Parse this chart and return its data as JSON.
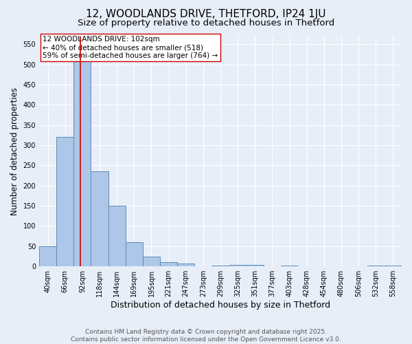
{
  "title": "12, WOODLANDS DRIVE, THETFORD, IP24 1JU",
  "subtitle": "Size of property relative to detached houses in Thetford",
  "xlabel": "Distribution of detached houses by size in Thetford",
  "ylabel": "Number of detached properties",
  "categories": [
    "40sqm",
    "66sqm",
    "92sqm",
    "118sqm",
    "144sqm",
    "169sqm",
    "195sqm",
    "221sqm",
    "247sqm",
    "273sqm",
    "299sqm",
    "325sqm",
    "351sqm",
    "377sqm",
    "403sqm",
    "428sqm",
    "454sqm",
    "480sqm",
    "506sqm",
    "532sqm",
    "558sqm"
  ],
  "values": [
    50,
    320,
    510,
    235,
    150,
    60,
    25,
    10,
    8,
    0,
    2,
    4,
    4,
    0,
    2,
    0,
    0,
    0,
    0,
    2,
    2
  ],
  "bar_color": "#aec6e8",
  "bar_edge_color": "#5b8db8",
  "bar_edge_width": 0.7,
  "red_line_index": 2,
  "red_line_color": "#cc0000",
  "annotation_text": "12 WOODLANDS DRIVE: 102sqm\n← 40% of detached houses are smaller (518)\n59% of semi-detached houses are larger (764) →",
  "annotation_box_color": "#ffffff",
  "annotation_box_edge_color": "#cc0000",
  "ylim": [
    0,
    570
  ],
  "yticks": [
    0,
    50,
    100,
    150,
    200,
    250,
    300,
    350,
    400,
    450,
    500,
    550
  ],
  "background_color": "#e8eef8",
  "plot_bg_color": "#e8eef8",
  "grid_color": "#ffffff",
  "footer_line1": "Contains HM Land Registry data © Crown copyright and database right 2025.",
  "footer_line2": "Contains public sector information licensed under the Open Government Licence v3.0.",
  "title_fontsize": 11,
  "subtitle_fontsize": 9.5,
  "xlabel_fontsize": 9,
  "ylabel_fontsize": 8.5,
  "tick_fontsize": 7,
  "footer_fontsize": 6.5,
  "annotation_fontsize": 7.5
}
